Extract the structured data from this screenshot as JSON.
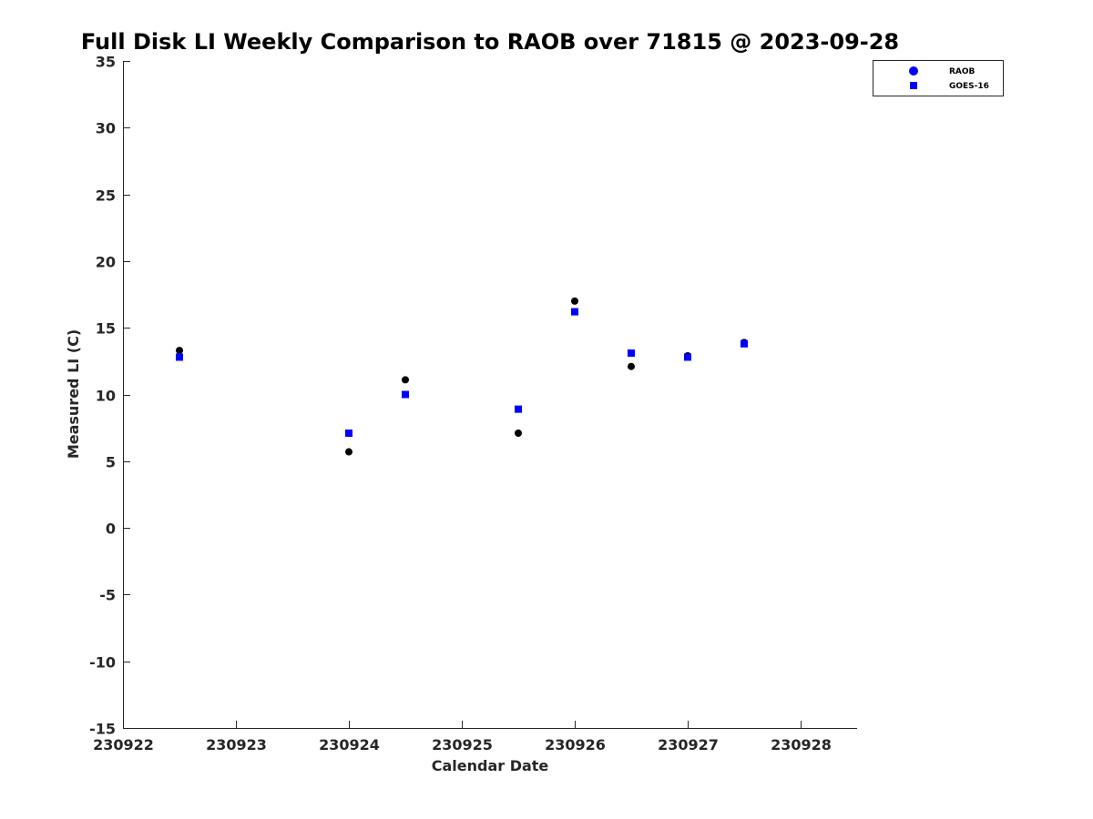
{
  "chart_data": {
    "type": "scatter",
    "title": "Full Disk LI Weekly Comparison to RAOB over 71815 @ 2023-09-28",
    "xlabel": "Calendar Date",
    "ylabel": "Measured LI (C)",
    "xlim": [
      230922,
      230928.5
    ],
    "ylim": [
      -15,
      35
    ],
    "xticks": [
      230922,
      230923,
      230924,
      230925,
      230926,
      230927,
      230928
    ],
    "xtick_labels": [
      "230922",
      "230923",
      "230924",
      "230925",
      "230926",
      "230927",
      "230928"
    ],
    "yticks": [
      -15,
      -10,
      -5,
      0,
      5,
      10,
      15,
      20,
      25,
      30,
      35
    ],
    "ytick_labels": [
      "-15",
      "-10",
      "-5",
      "0",
      "5",
      "10",
      "15",
      "20",
      "25",
      "30",
      "35"
    ],
    "grid": false,
    "legend_position": "top-right",
    "series": [
      {
        "name": "RAOB",
        "marker": "circle",
        "color": "#000000",
        "legend_color": "#0000ff",
        "x": [
          230922.5,
          230924.0,
          230924.5,
          230925.5,
          230926.0,
          230926.5,
          230927.0,
          230927.5
        ],
        "y": [
          13.3,
          5.7,
          11.1,
          7.1,
          17.0,
          12.1,
          12.9,
          13.9
        ]
      },
      {
        "name": "GOES-16",
        "marker": "square",
        "color": "#0000ff",
        "legend_color": "#0000ff",
        "x": [
          230922.5,
          230924.0,
          230924.5,
          230925.5,
          230926.0,
          230926.5,
          230927.0,
          230927.5
        ],
        "y": [
          12.8,
          7.1,
          10.0,
          8.9,
          16.2,
          13.1,
          12.8,
          13.8
        ]
      }
    ]
  }
}
